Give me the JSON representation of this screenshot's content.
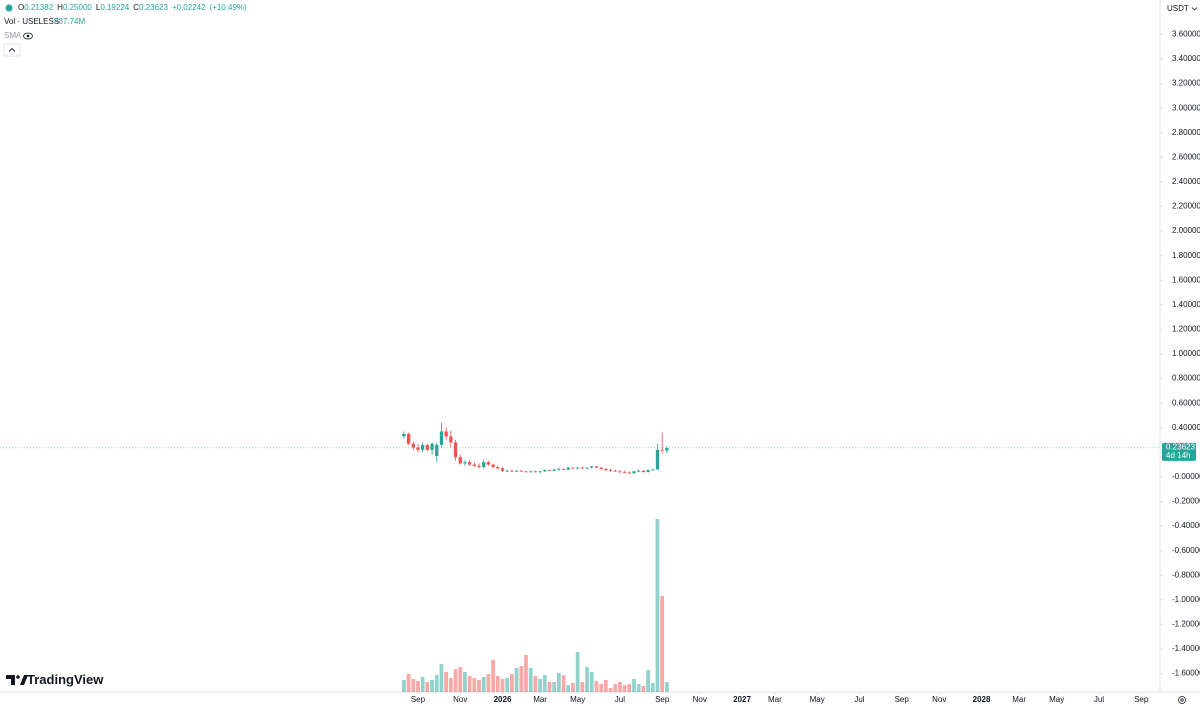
{
  "chart_data": {
    "type": "candlestick",
    "ohlc_header": [
      {
        "label": "O",
        "value": "0.21382"
      },
      {
        "label": "H",
        "value": "0.25000"
      },
      {
        "label": "L",
        "value": "0.19224"
      },
      {
        "label": "C",
        "value": "0.23623"
      }
    ],
    "change": "+0.02242",
    "change_pct": "(+10.49%)",
    "volume_title": "Vol · USELESS",
    "volume_value": "987.74M",
    "indicator": "SMA",
    "currency": "USDT",
    "price_tag": "0.23623",
    "countdown": "4d 14h",
    "brand": "TradingView",
    "up_color": "#26a69a",
    "down_color": "#ef5350",
    "open": [
      0.33,
      0.35,
      0.27,
      0.24,
      0.22,
      0.26,
      0.22,
      0.17,
      0.26,
      0.37,
      0.33,
      0.28,
      0.16,
      0.11,
      0.12,
      0.1,
      0.09,
      0.08,
      0.12,
      0.1,
      0.08,
      0.07,
      0.05,
      0.05,
      0.045,
      0.05,
      0.045,
      0.04,
      0.045,
      0.04,
      0.045,
      0.055,
      0.05,
      0.06,
      0.065,
      0.06,
      0.075,
      0.07,
      0.075,
      0.07,
      0.075,
      0.085,
      0.075,
      0.065,
      0.055,
      0.05,
      0.045,
      0.04,
      0.035,
      0.03,
      0.045,
      0.05,
      0.04,
      0.055,
      0.06,
      0.22,
      0.21382
    ],
    "high": [
      0.37,
      0.36,
      0.29,
      0.27,
      0.28,
      0.27,
      0.28,
      0.28,
      0.44,
      0.4,
      0.38,
      0.3,
      0.18,
      0.14,
      0.14,
      0.12,
      0.11,
      0.14,
      0.13,
      0.11,
      0.09,
      0.08,
      0.06,
      0.06,
      0.055,
      0.055,
      0.05,
      0.05,
      0.05,
      0.05,
      0.06,
      0.06,
      0.065,
      0.075,
      0.07,
      0.08,
      0.08,
      0.08,
      0.085,
      0.08,
      0.09,
      0.09,
      0.08,
      0.07,
      0.065,
      0.06,
      0.055,
      0.05,
      0.045,
      0.05,
      0.06,
      0.055,
      0.06,
      0.07,
      0.27,
      0.36,
      0.25
    ],
    "low": [
      0.31,
      0.26,
      0.22,
      0.2,
      0.2,
      0.21,
      0.18,
      0.12,
      0.24,
      0.3,
      0.24,
      0.13,
      0.1,
      0.09,
      0.09,
      0.08,
      0.07,
      0.07,
      0.09,
      0.07,
      0.06,
      0.04,
      0.04,
      0.04,
      0.04,
      0.04,
      0.035,
      0.035,
      0.035,
      0.03,
      0.04,
      0.045,
      0.045,
      0.05,
      0.055,
      0.055,
      0.06,
      0.06,
      0.065,
      0.06,
      0.07,
      0.07,
      0.06,
      0.05,
      0.04,
      0.04,
      0.03,
      0.03,
      0.025,
      0.025,
      0.04,
      0.035,
      0.035,
      0.05,
      0.06,
      0.19,
      0.19224
    ],
    "close": [
      0.35,
      0.27,
      0.24,
      0.22,
      0.26,
      0.22,
      0.27,
      0.26,
      0.37,
      0.33,
      0.28,
      0.16,
      0.11,
      0.12,
      0.1,
      0.09,
      0.08,
      0.12,
      0.1,
      0.08,
      0.07,
      0.05,
      0.05,
      0.045,
      0.05,
      0.045,
      0.04,
      0.045,
      0.04,
      0.045,
      0.055,
      0.05,
      0.06,
      0.065,
      0.06,
      0.075,
      0.07,
      0.075,
      0.07,
      0.075,
      0.085,
      0.075,
      0.065,
      0.055,
      0.05,
      0.045,
      0.04,
      0.035,
      0.03,
      0.045,
      0.05,
      0.04,
      0.055,
      0.06,
      0.22,
      0.2138,
      0.23623
    ],
    "volume": [
      1200,
      1800,
      1300,
      1100,
      1500,
      1000,
      1200,
      1700,
      2800,
      2000,
      1400,
      2300,
      2500,
      2000,
      1600,
      1400,
      1200,
      1500,
      1800,
      3200,
      1600,
      1300,
      1400,
      1800,
      2400,
      2600,
      3700,
      2400,
      1600,
      1300,
      1700,
      1000,
      1000,
      1900,
      1700,
      700,
      900,
      4000,
      1000,
      2500,
      2000,
      1100,
      800,
      1200,
      400,
      800,
      1000,
      700,
      800,
      1300,
      800,
      600,
      2200,
      900,
      17300,
      9600,
      987.74
    ],
    "vlim": [
      0,
      20000
    ],
    "ylim": [
      -1.75,
      3.88
    ],
    "yticks": [
      {
        "value": 3.6,
        "label": "3.60000"
      },
      {
        "value": 3.4,
        "label": "3.40000"
      },
      {
        "value": 3.2,
        "label": "3.20000"
      },
      {
        "value": 3.0,
        "label": "3.00000"
      },
      {
        "value": 2.8,
        "label": "2.80000"
      },
      {
        "value": 2.6,
        "label": "2.60000"
      },
      {
        "value": 2.4,
        "label": "2.40000"
      },
      {
        "value": 2.2,
        "label": "2.20000"
      },
      {
        "value": 2.0,
        "label": "2.00000"
      },
      {
        "value": 1.8,
        "label": "1.80000"
      },
      {
        "value": 1.6,
        "label": "1.60000"
      },
      {
        "value": 1.4,
        "label": "1.40000"
      },
      {
        "value": 1.2,
        "label": "1.20000"
      },
      {
        "value": 1.0,
        "label": "1.00000"
      },
      {
        "value": 0.8,
        "label": "0.80000"
      },
      {
        "value": 0.6,
        "label": "0.60000"
      },
      {
        "value": 0.4,
        "label": "0.40000"
      },
      {
        "value": 0,
        "label": "-0.00000"
      },
      {
        "value": -0.2,
        "label": "-0.20000"
      },
      {
        "value": -0.4,
        "label": "-0.40000"
      },
      {
        "value": -0.6,
        "label": "-0.60000"
      },
      {
        "value": -0.8,
        "label": "-0.80000"
      },
      {
        "value": -1.0,
        "label": "-1.00000"
      },
      {
        "value": -1.2,
        "label": "-1.20000"
      },
      {
        "value": -1.4,
        "label": "-1.40000"
      },
      {
        "value": -1.6,
        "label": "-1.60000"
      }
    ],
    "xlim": [
      -86,
      161
    ],
    "xticks": [
      {
        "value": 3,
        "label": "Sep"
      },
      {
        "value": 12,
        "label": "Nov"
      },
      {
        "value": 21,
        "label": "2026"
      },
      {
        "value": 29,
        "label": "Mar"
      },
      {
        "value": 37,
        "label": "May"
      },
      {
        "value": 46,
        "label": "Jul"
      },
      {
        "value": 55,
        "label": "Sep"
      },
      {
        "value": 63,
        "label": "Nov"
      },
      {
        "value": 72,
        "label": "2027"
      },
      {
        "value": 79,
        "label": "Mar"
      },
      {
        "value": 88,
        "label": "May"
      },
      {
        "value": 97,
        "label": "Jul"
      },
      {
        "value": 106,
        "label": "Sep"
      },
      {
        "value": 114,
        "label": "Nov"
      },
      {
        "value": 123,
        "label": "2028"
      },
      {
        "value": 131,
        "label": "Mar"
      },
      {
        "value": 139,
        "label": "May"
      },
      {
        "value": 148,
        "label": "Jul"
      },
      {
        "value": 157,
        "label": "Sep"
      }
    ]
  }
}
